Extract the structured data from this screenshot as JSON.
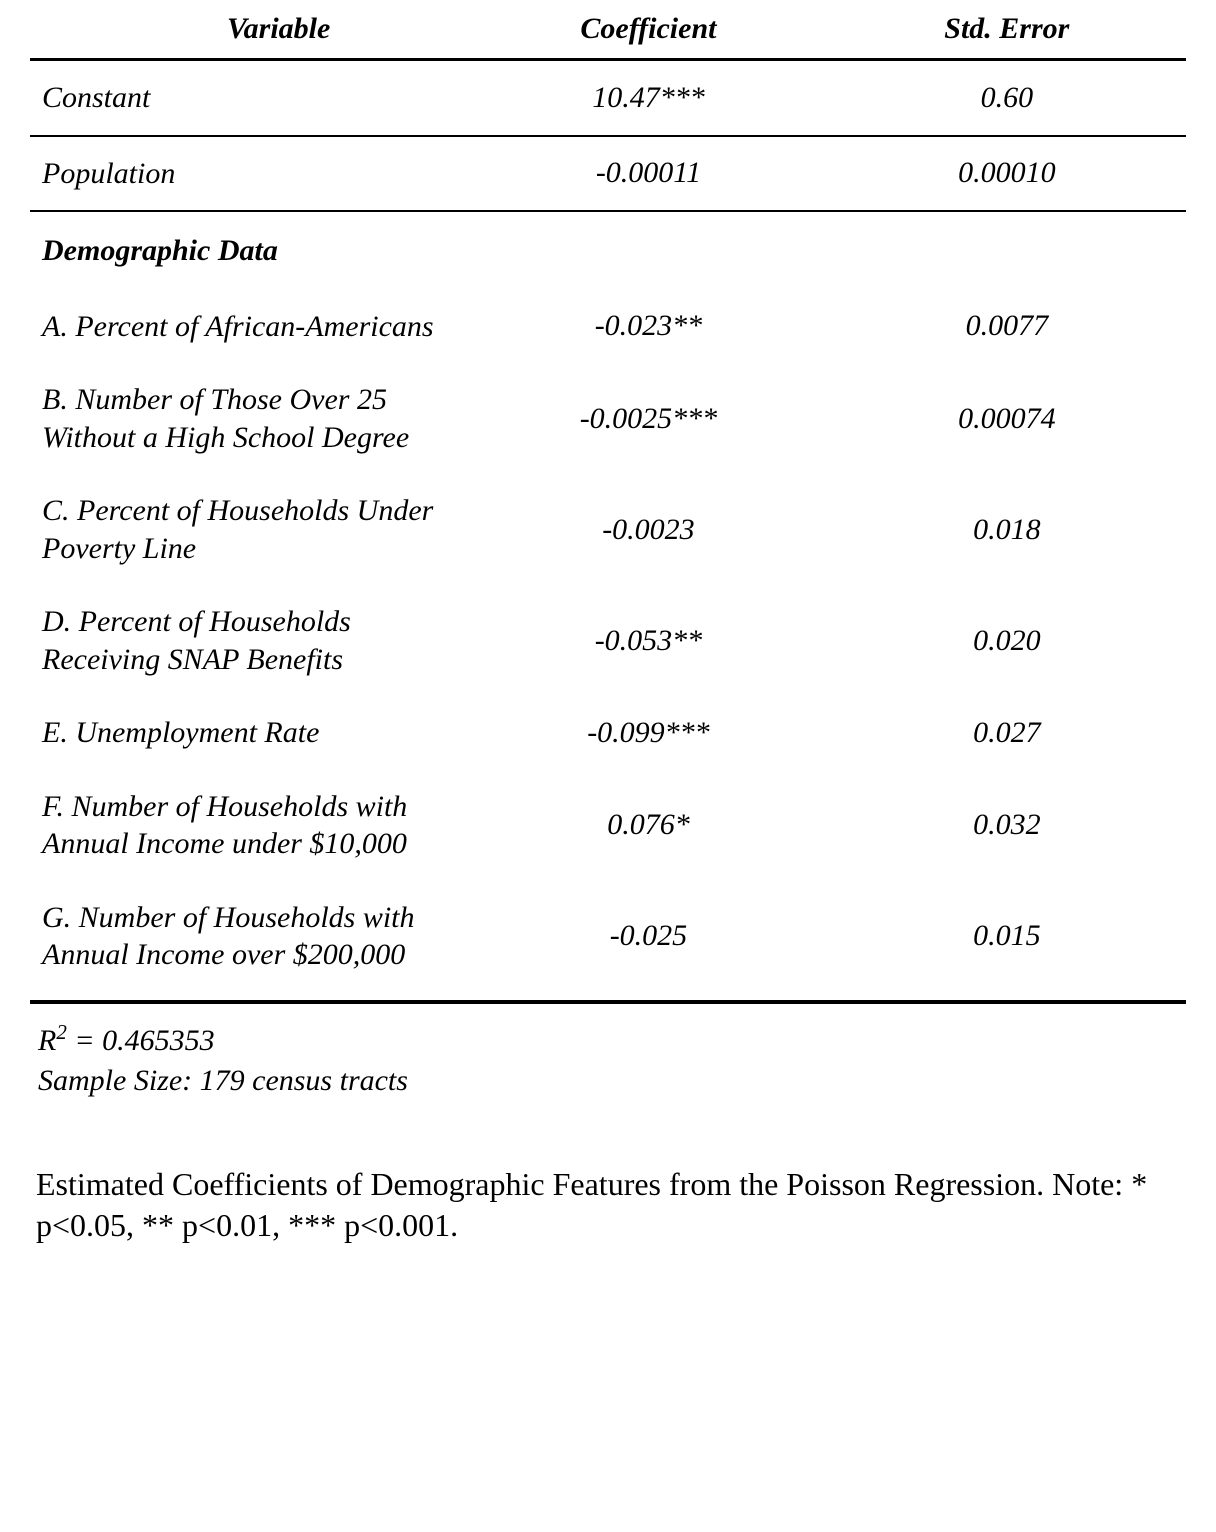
{
  "columns": {
    "variable": "Variable",
    "coefficient": "Coefficient",
    "std_error": "Std. Error"
  },
  "rows": {
    "constant": {
      "label": "Constant",
      "coef": "10.47***",
      "se": "0.60"
    },
    "population": {
      "label": "Population",
      "coef": "-0.00011",
      "se": "0.00010"
    }
  },
  "section": {
    "heading": "Demographic Data",
    "items": {
      "a": {
        "label": "A. Percent of African-Americans",
        "coef": "-0.023**",
        "se": "0.0077"
      },
      "b": {
        "label": "B. Number of Those Over 25 Without a High School Degree",
        "coef": "-0.0025***",
        "se": "0.00074"
      },
      "c": {
        "label": "C. Percent of Households Under Poverty Line",
        "coef": "-0.0023",
        "se": "0.018"
      },
      "d": {
        "label": "D. Percent of Households Receiving SNAP Benefits",
        "coef": "-0.053**",
        "se": "0.020"
      },
      "e": {
        "label": "E. Unemployment Rate",
        "coef": "-0.099***",
        "se": "0.027"
      },
      "f": {
        "label": "F. Number of Households with Annual Income under $10,000",
        "coef": "0.076*",
        "se": "0.032"
      },
      "g": {
        "label": "G. Number of Households with Annual Income over $200,000",
        "coef": "-0.025",
        "se": "0.015"
      }
    }
  },
  "footer": {
    "r2_prefix": "R",
    "r2_value": " = 0.465353",
    "sample_size": "Sample Size: 179 census tracts"
  },
  "caption": "Estimated Coefficients of Demographic Features from the Poisson Regression. Note: * p<0.05, ** p<0.01, *** p<0.001."
}
